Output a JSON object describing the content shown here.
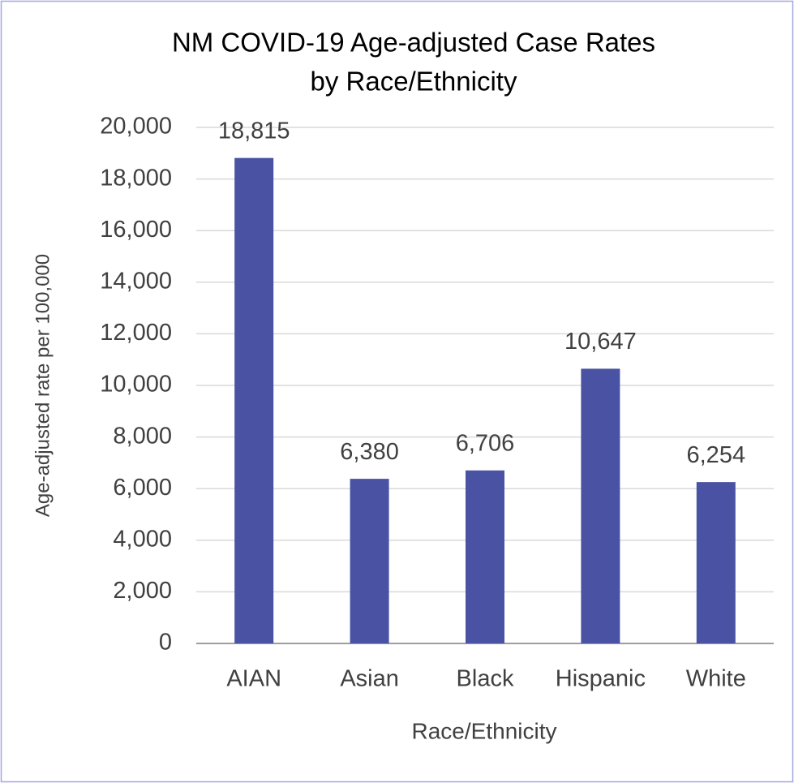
{
  "chart_data": {
    "type": "bar",
    "title": [
      "NM COVID-19 Age-adjusted Case Rates",
      "by Race/Ethnicity"
    ],
    "x_label": "Race/Ethnicity",
    "y_label": "Age-adjusted rate per 100,000",
    "categories": [
      "AIAN",
      "Asian",
      "Black",
      "Hispanic",
      "White"
    ],
    "values": [
      18815,
      6380,
      6706,
      10647,
      6254
    ],
    "value_labels": [
      "18,815",
      "6,380",
      "6,706",
      "10,647",
      "6,254"
    ],
    "color": "#4a53a3",
    "ylim": [
      0,
      20000
    ],
    "yticks": [
      0,
      {
        "value": 2000,
        "label": "2,000"
      },
      {
        "value": 4000,
        "label": "4,000"
      },
      {
        "value": 6000,
        "label": "6,000"
      },
      {
        "value": 8000,
        "label": "8,000"
      },
      {
        "value": 10000,
        "label": "10,000"
      },
      {
        "value": 12000,
        "label": "12,000"
      },
      {
        "value": 14000,
        "label": "14,000"
      },
      {
        "value": 16000,
        "label": "16,000"
      },
      {
        "value": 18000,
        "label": "18,000"
      },
      {
        "value": 20000,
        "label": "20,000"
      }
    ],
    "grid": true
  }
}
